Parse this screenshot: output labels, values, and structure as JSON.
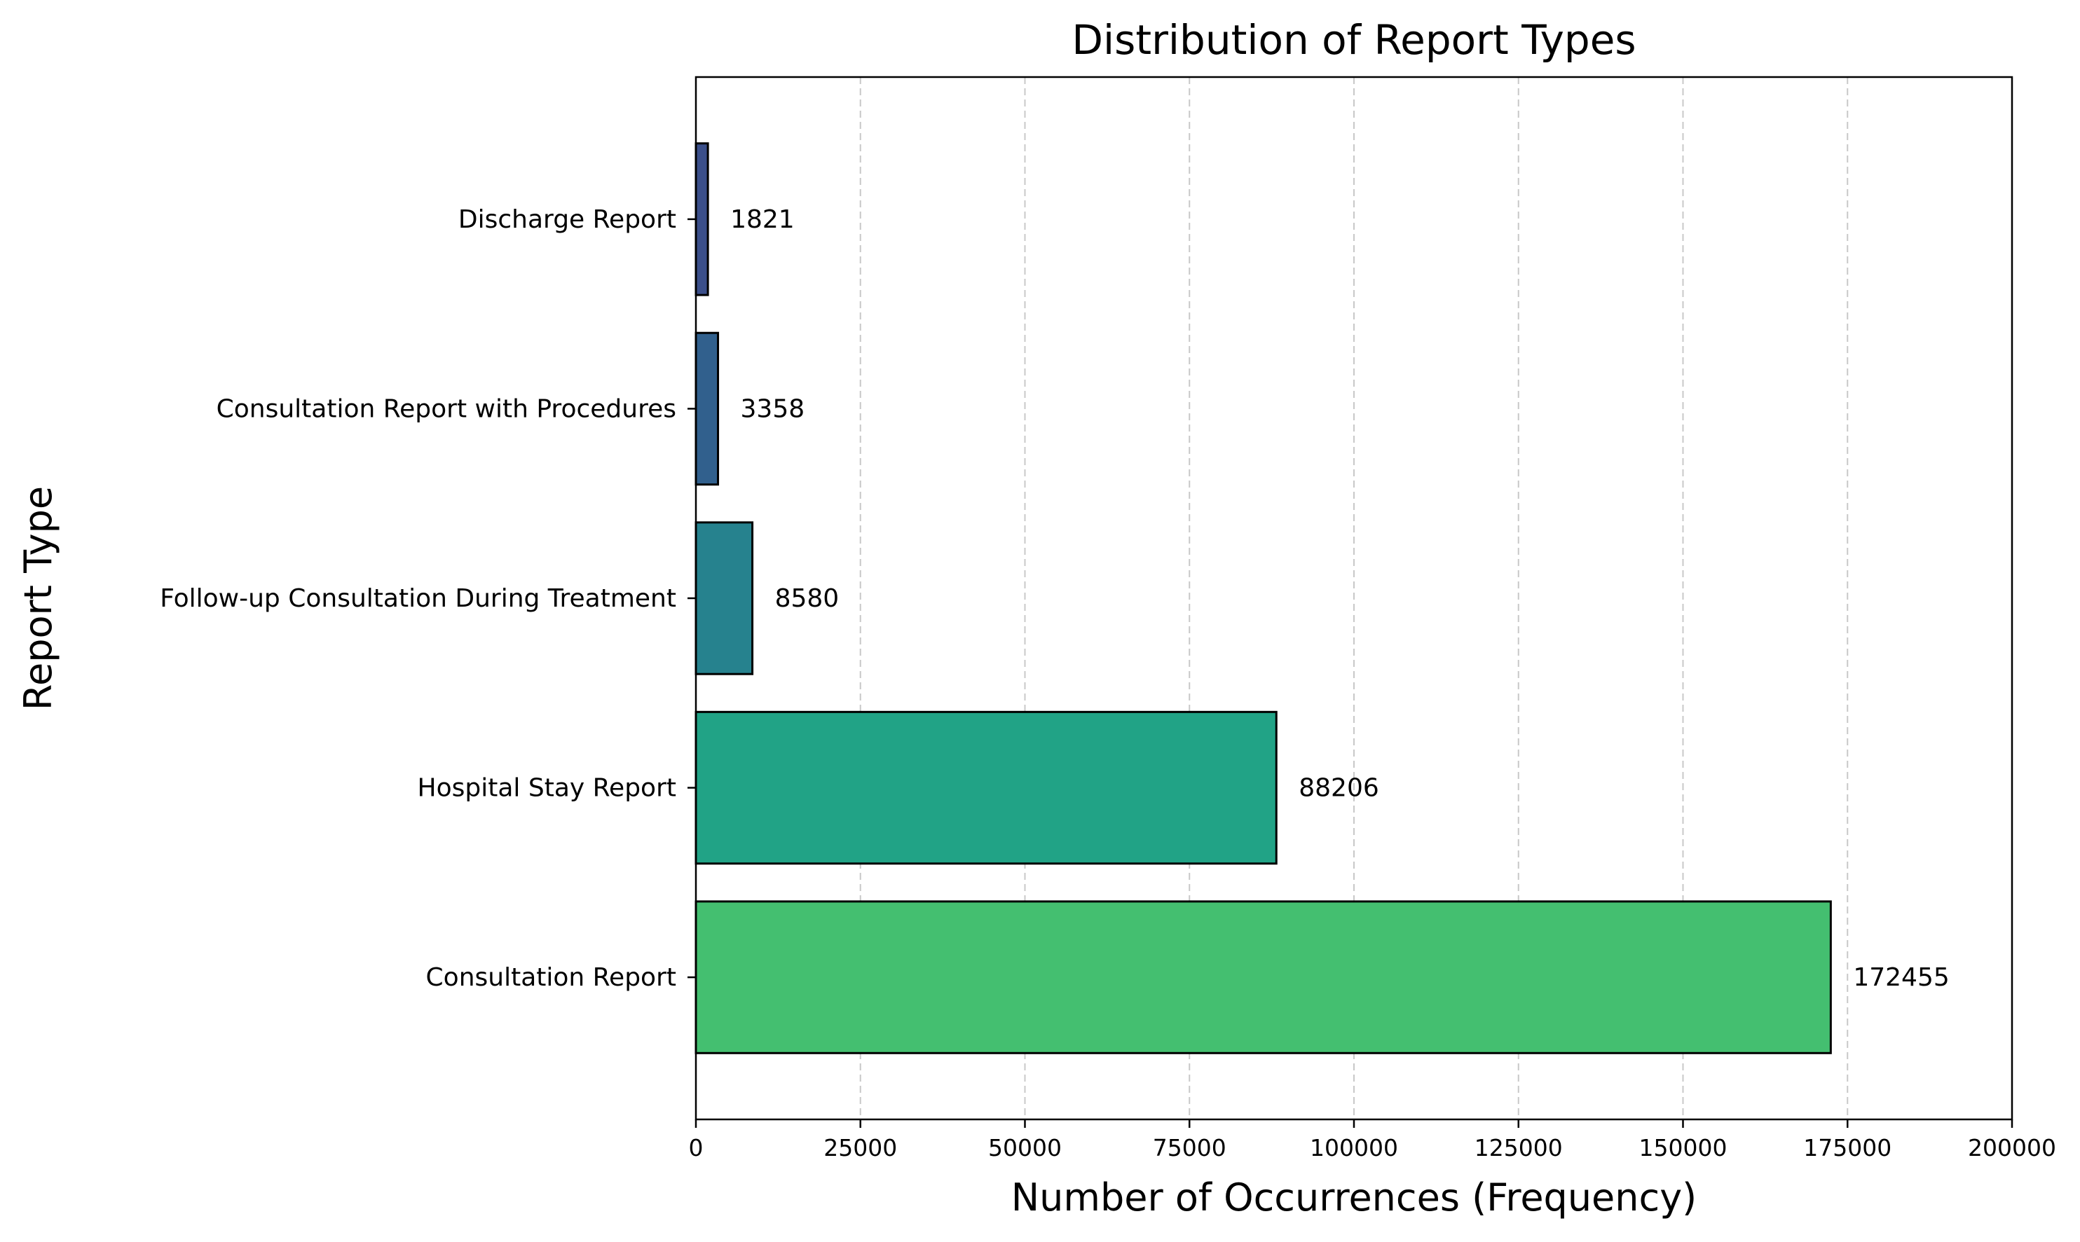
{
  "chart_data": {
    "type": "bar",
    "orientation": "horizontal",
    "title": "Distribution of Report Types",
    "xlabel": "Number of Occurrences (Frequency)",
    "ylabel": "Report Type",
    "categories": [
      "Consultation Report",
      "Hospital Stay Report",
      "Follow-up Consultation During Treatment",
      "Consultation Report with Procedures",
      "Discharge Report"
    ],
    "values": [
      172455,
      88206,
      8580,
      3358,
      1821
    ],
    "data_labels": [
      "172455",
      "88206",
      "8580",
      "3358",
      "1821"
    ],
    "xlim": [
      0,
      200000
    ],
    "xticks": [
      0,
      25000,
      50000,
      75000,
      100000,
      125000,
      150000,
      175000,
      200000
    ],
    "xtick_labels": [
      "0",
      "25000",
      "50000",
      "75000",
      "100000",
      "125000",
      "150000",
      "175000",
      "200000"
    ],
    "grid": "x-axis dashed",
    "legend": "none",
    "bar_colors": [
      "#44bf70",
      "#21a386",
      "#26828e",
      "#31608d",
      "#3b4f8a"
    ],
    "bar_edge_color": "#000000",
    "grid_color": "#c8c8c8"
  }
}
